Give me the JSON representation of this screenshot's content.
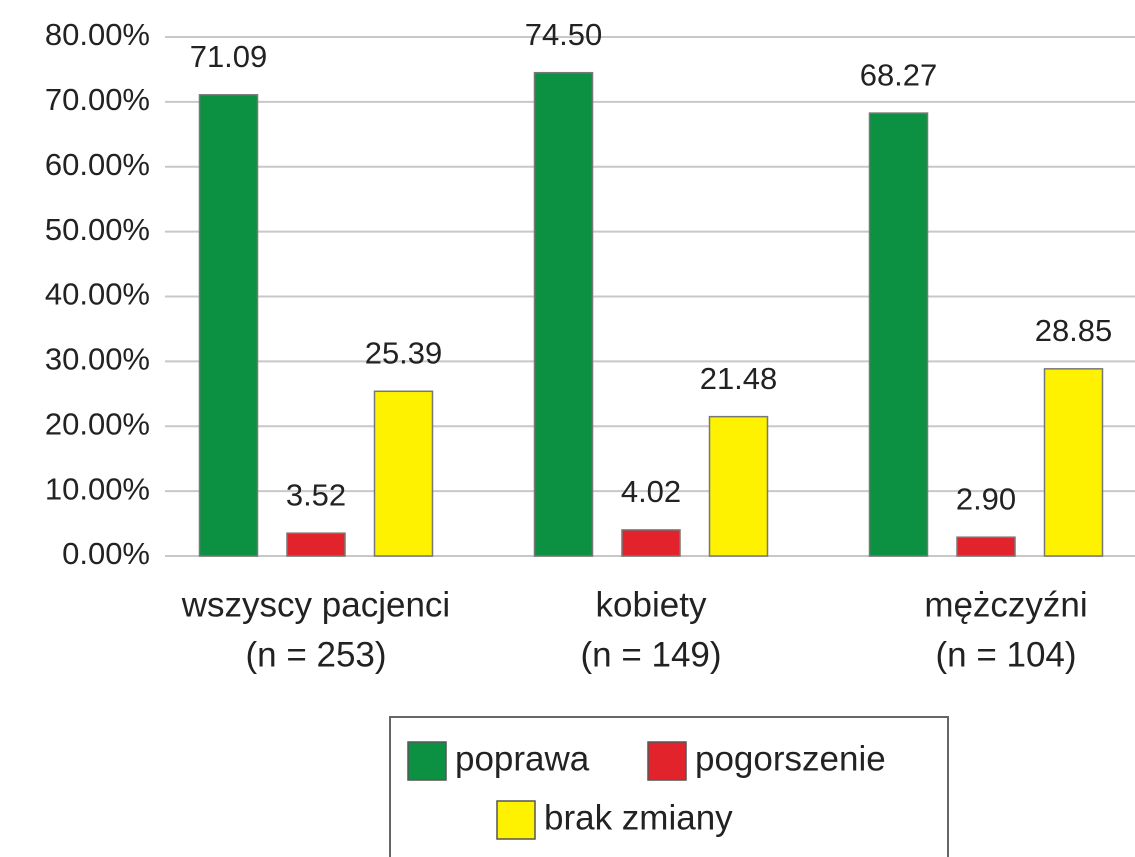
{
  "chart_data": {
    "type": "bar",
    "categories": [
      [
        "wszyscy pacjenci",
        "(n = 253)"
      ],
      [
        "kobiety",
        "(n = 149)"
      ],
      [
        "mężczyźni",
        "(n = 104)"
      ]
    ],
    "series": [
      {
        "name": "poprawa",
        "color": "#0b9141",
        "values": [
          71.09,
          74.5,
          68.27
        ],
        "value_labels": [
          "71.09",
          "74.50",
          "68.27"
        ]
      },
      {
        "name": "pogorszenie",
        "color": "#e3232b",
        "values": [
          3.52,
          4.02,
          2.9
        ],
        "value_labels": [
          "3.52",
          "4.02",
          "2.90"
        ]
      },
      {
        "name": "brak zmiany",
        "color": "#fff200",
        "values": [
          25.39,
          21.48,
          28.85
        ],
        "value_labels": [
          "25.39",
          "21.48",
          "28.85"
        ]
      }
    ],
    "ylim": [
      0,
      80
    ],
    "yticks": [
      {
        "value": 0,
        "label": "0.00%"
      },
      {
        "value": 10,
        "label": "10.00%"
      },
      {
        "value": 20,
        "label": "20.00%"
      },
      {
        "value": 30,
        "label": "30.00%"
      },
      {
        "value": 40,
        "label": "40.00%"
      },
      {
        "value": 50,
        "label": "50.00%"
      },
      {
        "value": 60,
        "label": "60.00%"
      },
      {
        "value": 70,
        "label": "70.00%"
      },
      {
        "value": 80,
        "label": "80.00%"
      }
    ],
    "grid": true
  }
}
